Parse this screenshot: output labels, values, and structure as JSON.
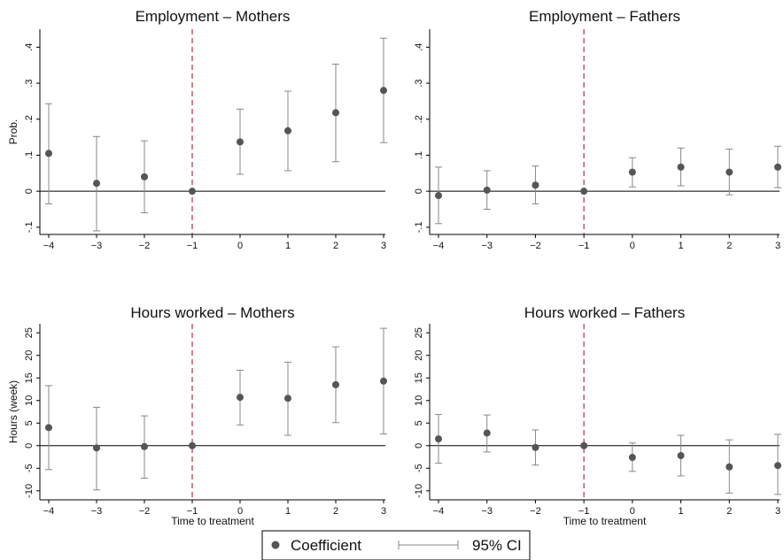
{
  "chart_data": [
    {
      "type": "scatter",
      "title": "Employment – Mothers",
      "ylabel": "Prob.",
      "xlabel": "",
      "x": [
        -4,
        -3,
        -2,
        -1,
        0,
        1,
        2,
        3
      ],
      "xlim": [
        -4,
        3
      ],
      "ylim": [
        -0.12,
        0.45
      ],
      "yticks": [
        -0.1,
        0,
        0.1,
        0.2,
        0.3,
        0.4
      ],
      "ytick_labels": [
        "-.1",
        "0",
        ".1",
        ".2",
        ".3",
        ".4"
      ],
      "series": [
        {
          "name": "Coefficient",
          "values": [
            0.105,
            0.022,
            0.04,
            0.0,
            0.137,
            0.168,
            0.218,
            0.28
          ]
        },
        {
          "name": "95% CI",
          "lower": [
            -0.035,
            -0.11,
            -0.06,
            null,
            0.047,
            0.057,
            0.082,
            0.135
          ],
          "upper": [
            0.243,
            0.152,
            0.14,
            null,
            0.228,
            0.278,
            0.353,
            0.425
          ]
        }
      ],
      "reference_line_x": -1
    },
    {
      "type": "scatter",
      "title": "Employment – Fathers",
      "ylabel": "",
      "xlabel": "",
      "x": [
        -4,
        -3,
        -2,
        -1,
        0,
        1,
        2,
        3
      ],
      "xlim": [
        -4,
        3
      ],
      "ylim": [
        -0.12,
        0.45
      ],
      "yticks": [
        -0.1,
        0,
        0.1,
        0.2,
        0.3,
        0.4
      ],
      "ytick_labels": [
        "-.1",
        "0",
        ".1",
        ".2",
        ".3",
        ".4"
      ],
      "series": [
        {
          "name": "Coefficient",
          "values": [
            -0.012,
            0.003,
            0.017,
            0.0,
            0.053,
            0.067,
            0.053,
            0.067
          ]
        },
        {
          "name": "95% CI",
          "lower": [
            -0.09,
            -0.05,
            -0.035,
            null,
            0.012,
            0.015,
            -0.01,
            0.01
          ],
          "upper": [
            0.067,
            0.057,
            0.07,
            null,
            0.093,
            0.12,
            0.117,
            0.125
          ]
        }
      ],
      "reference_line_x": -1
    },
    {
      "type": "scatter",
      "title": "Hours worked – Mothers",
      "ylabel": "Hours (week)",
      "xlabel": "Time to treatment",
      "x": [
        -4,
        -3,
        -2,
        -1,
        0,
        1,
        2,
        3
      ],
      "xlim": [
        -4,
        3
      ],
      "ylim": [
        -12,
        27
      ],
      "yticks": [
        -10,
        -5,
        0,
        5,
        10,
        15,
        20,
        25
      ],
      "ytick_labels": [
        "-10",
        "-5",
        "0",
        "5",
        "10",
        "15",
        "20",
        "25"
      ],
      "series": [
        {
          "name": "Coefficient",
          "values": [
            4.0,
            -0.5,
            -0.2,
            0.0,
            10.7,
            10.5,
            13.5,
            14.3
          ]
        },
        {
          "name": "95% CI",
          "lower": [
            -5.3,
            -9.8,
            -7.2,
            null,
            4.6,
            2.3,
            5.1,
            2.6
          ],
          "upper": [
            13.3,
            8.5,
            6.6,
            null,
            16.7,
            18.5,
            21.9,
            26.0
          ]
        }
      ],
      "reference_line_x": -1
    },
    {
      "type": "scatter",
      "title": "Hours worked – Fathers",
      "ylabel": "",
      "xlabel": "Time to treatment",
      "x": [
        -4,
        -3,
        -2,
        -1,
        0,
        1,
        2,
        3
      ],
      "xlim": [
        -4,
        3
      ],
      "ylim": [
        -12,
        27
      ],
      "yticks": [
        -10,
        -5,
        0,
        5,
        10,
        15,
        20,
        25
      ],
      "ytick_labels": [
        "-10",
        "-5",
        "0",
        "5",
        "10",
        "15",
        "20",
        "25"
      ],
      "series": [
        {
          "name": "Coefficient",
          "values": [
            1.5,
            2.8,
            -0.4,
            0.0,
            -2.6,
            -2.2,
            -4.7,
            -4.4
          ]
        },
        {
          "name": "95% CI",
          "lower": [
            -3.9,
            -1.4,
            -4.3,
            null,
            -5.7,
            -6.7,
            -10.5,
            -10.8
          ],
          "upper": [
            6.9,
            6.8,
            3.5,
            null,
            0.6,
            2.3,
            1.3,
            2.5
          ]
        }
      ],
      "reference_line_x": -1
    }
  ],
  "legend": {
    "items": [
      "Coefficient",
      "95% CI"
    ],
    "placement": "bottom-center"
  },
  "colors": {
    "marker": "#555555",
    "ci": "#888888",
    "reference": "#b03040",
    "zero_line": "#000000"
  }
}
